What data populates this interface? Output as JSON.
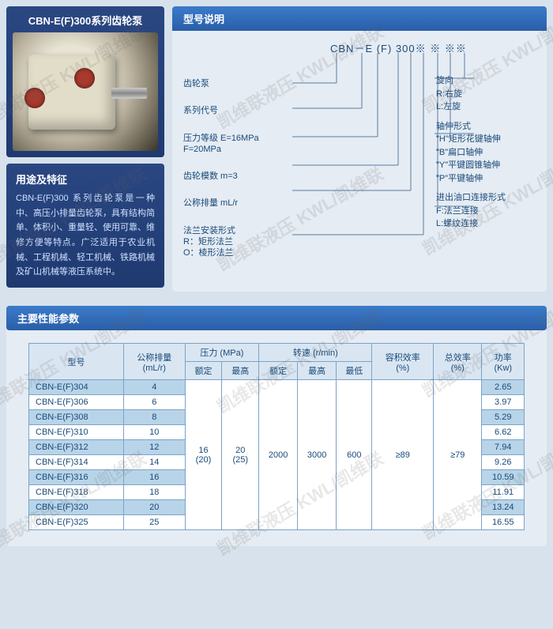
{
  "photo_card": {
    "title": "CBN-E(F)300系列齿轮泵"
  },
  "use_card": {
    "title": "用途及特征",
    "body": "CBN-E(F)300 系列齿轮泵是一种中、高压小排量齿轮泵，具有结构简单、体积小、重量轻、使用可靠、维修方便等特点。广泛适用于农业机械、工程机械、轻工机械、铁路机械及矿山机械等液压系统中。"
  },
  "explain": {
    "header": "型号说明",
    "model_code": "CBN－E (F) 300※  ※ ※※"
  },
  "left_labels": {
    "l1": "齿轮泵",
    "l2": "系列代号",
    "l3": "压力等级 E=16MPa\nF=20MPa",
    "l4": "齿轮模数 m=3",
    "l5": "公称排量 mL/r",
    "l6": "法兰安装形式\nR：矩形法兰\nO：棱形法兰"
  },
  "right_labels": {
    "r1_title": "旋向",
    "r1_a": "R:右旋",
    "r1_b": "L:左旋",
    "r2_title": "轴伸形式",
    "r2_a": "\"H\"矩形花键轴伸",
    "r2_b": "\"B\"扁口轴伸",
    "r2_c": "\"Y\"平键圆锥轴伸",
    "r2_d": "\"P\"平键轴伸",
    "r3_title": "进出油口连接形式",
    "r3_a": "F:法兰连接",
    "r3_b": "L:螺纹连接"
  },
  "params": {
    "header": "主要性能参数",
    "columns": {
      "model": "型号",
      "disp": "公称排量\n(mL/r)",
      "press": "压力 (MPa)",
      "press_rated": "额定",
      "press_max": "最高",
      "speed": "转速 (r/min)",
      "speed_rated": "额定",
      "speed_max": "最高",
      "speed_min": "最低",
      "vol_eff": "容积效率\n(%)",
      "tot_eff": "总效率\n(%)",
      "power": "功率\n(Kw)"
    },
    "shared": {
      "press_rated": "16\n(20)",
      "press_max": "20\n(25)",
      "speed_rated": "2000",
      "speed_max": "3000",
      "speed_min": "600",
      "vol_eff": "≥89",
      "tot_eff": "≥79"
    },
    "rows": [
      {
        "model": "CBN-E(F)304",
        "disp": "4",
        "power": "2.65",
        "band": true
      },
      {
        "model": "CBN-E(F)306",
        "disp": "6",
        "power": "3.97",
        "band": false
      },
      {
        "model": "CBN-E(F)308",
        "disp": "8",
        "power": "5.29",
        "band": true
      },
      {
        "model": "CBN-E(F)310",
        "disp": "10",
        "power": "6.62",
        "band": false
      },
      {
        "model": "CBN-E(F)312",
        "disp": "12",
        "power": "7.94",
        "band": true
      },
      {
        "model": "CBN-E(F)314",
        "disp": "14",
        "power": "9.26",
        "band": false
      },
      {
        "model": "CBN-E(F)316",
        "disp": "16",
        "power": "10.59",
        "band": true
      },
      {
        "model": "CBN-E(F)318",
        "disp": "18",
        "power": "11.91",
        "band": false
      },
      {
        "model": "CBN-E(F)320",
        "disp": "20",
        "power": "13.24",
        "band": true
      },
      {
        "model": "CBN-E(F)325",
        "disp": "25",
        "power": "16.55",
        "band": false
      }
    ]
  },
  "watermark": "凯维联液压  KWL/凯维联"
}
